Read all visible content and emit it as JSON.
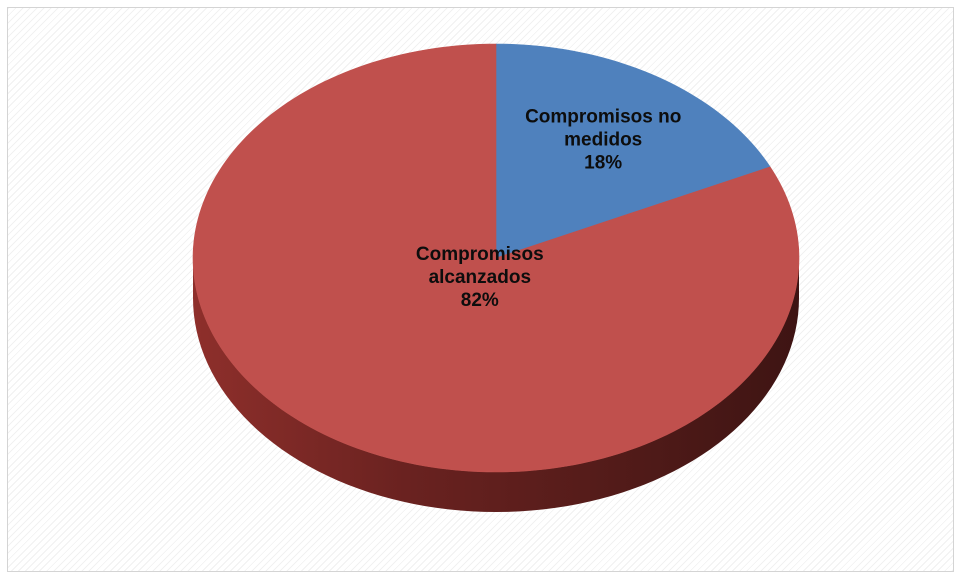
{
  "chart_data": {
    "type": "pie",
    "style": "3d",
    "title": "",
    "slices": [
      {
        "name": "Compromisos no medidos",
        "value": 18,
        "label_lines": [
          "Compromisos no",
          "medidos",
          "18%"
        ],
        "color": "#4f81bd"
      },
      {
        "name": "Compromisos alcanzados",
        "value": 82,
        "label_lines": [
          "Compromisos",
          "alcanzados",
          "82%"
        ],
        "color": "#c0504d"
      }
    ],
    "legend": "none",
    "grid": false
  }
}
